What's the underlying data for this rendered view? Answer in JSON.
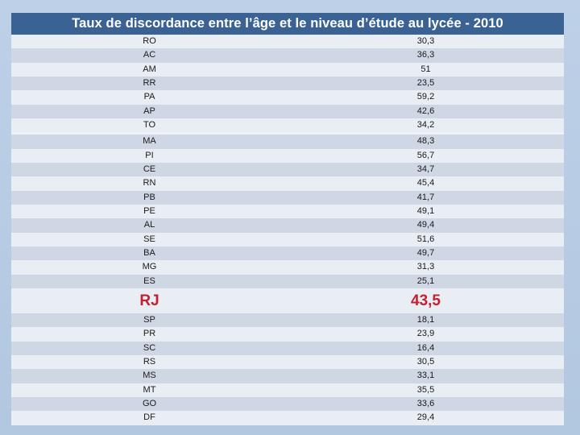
{
  "slide": {
    "title": "Taux de discordance entre l’âge et le niveau d’étude au lycée - 2010"
  },
  "colors": {
    "background_top": "#BDD0E8",
    "background_bottom": "#B2C7E0",
    "title_bar": "#3A6394",
    "title_text": "#FFFFFF",
    "row_light": "#E9EDF4",
    "row_dark": "#CFD6E4",
    "row_text": "#1A1A1A",
    "highlight_text": "#C32031",
    "group_gap": "#EFF2F8"
  },
  "chart_data": {
    "type": "table",
    "title": "Taux de discordance entre l’âge et le niveau d’étude au lycée - 2010",
    "value_format": "decimal comma, values in percent",
    "highlighted_row": {
      "label": "RJ",
      "value": "43,5"
    },
    "groups": [
      {
        "name": "group-1",
        "gap_before": false,
        "highlight": false,
        "rows": [
          [
            "RO",
            "30,3"
          ],
          [
            "AC",
            "36,3"
          ],
          [
            "AM",
            "51"
          ],
          [
            "RR",
            "23,5"
          ],
          [
            "PA",
            "59,2"
          ],
          [
            "AP",
            "42,6"
          ],
          [
            "TO",
            "34,2"
          ]
        ]
      },
      {
        "name": "group-2",
        "gap_before": true,
        "highlight": false,
        "rows": [
          [
            "MA",
            "48,3"
          ],
          [
            "PI",
            "56,7"
          ],
          [
            "CE",
            "34,7"
          ],
          [
            "RN",
            "45,4"
          ],
          [
            "PB",
            "41,7"
          ],
          [
            "PE",
            "49,1"
          ],
          [
            "AL",
            "49,4"
          ],
          [
            "SE",
            "51,6"
          ],
          [
            "BA",
            "49,7"
          ],
          [
            "MG",
            "31,3"
          ],
          [
            "ES",
            "25,1"
          ]
        ]
      },
      {
        "name": "highlight-row",
        "gap_before": false,
        "highlight": true,
        "rows": [
          [
            "RJ",
            "43,5"
          ]
        ]
      },
      {
        "name": "group-3",
        "gap_before": false,
        "highlight": false,
        "rows": [
          [
            "SP",
            "18,1"
          ],
          [
            "PR",
            "23,9"
          ],
          [
            "SC",
            "16,4"
          ],
          [
            "RS",
            "30,5"
          ],
          [
            "MS",
            "33,1"
          ],
          [
            "MT",
            "35,5"
          ],
          [
            "GO",
            "33,6"
          ],
          [
            "DF",
            "29,4"
          ]
        ]
      }
    ]
  }
}
